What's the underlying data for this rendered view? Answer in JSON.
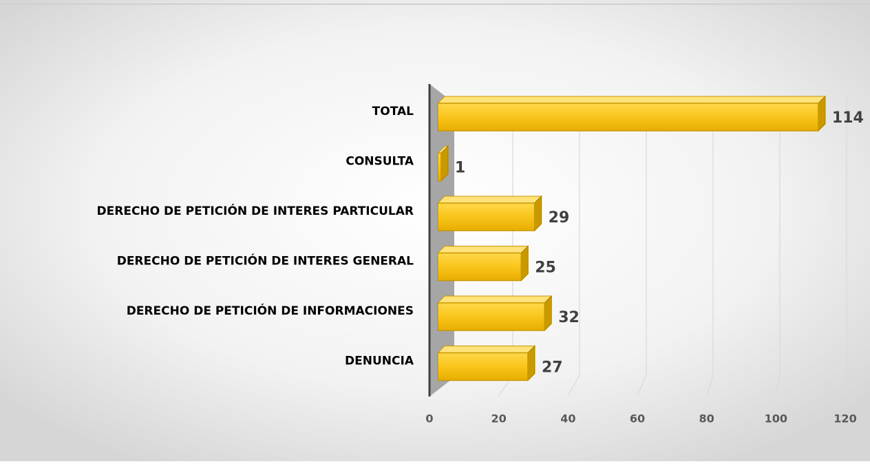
{
  "chart_data": {
    "type": "bar",
    "orientation": "horizontal",
    "categories": [
      "TOTAL",
      "CONSULTA",
      "DERECHO DE PETICIÓN DE INTERES PARTICULAR",
      "DERECHO DE PETICIÓN DE INTERES GENERAL",
      "DERECHO DE PETICIÓN DE INFORMACIONES",
      "DENUNCIA"
    ],
    "values": [
      114,
      1,
      29,
      25,
      32,
      27
    ],
    "color": "#f7c21a",
    "xlim": [
      0,
      120
    ],
    "xticks": [
      0,
      20,
      40,
      60,
      80,
      100,
      120
    ],
    "grid": true
  }
}
